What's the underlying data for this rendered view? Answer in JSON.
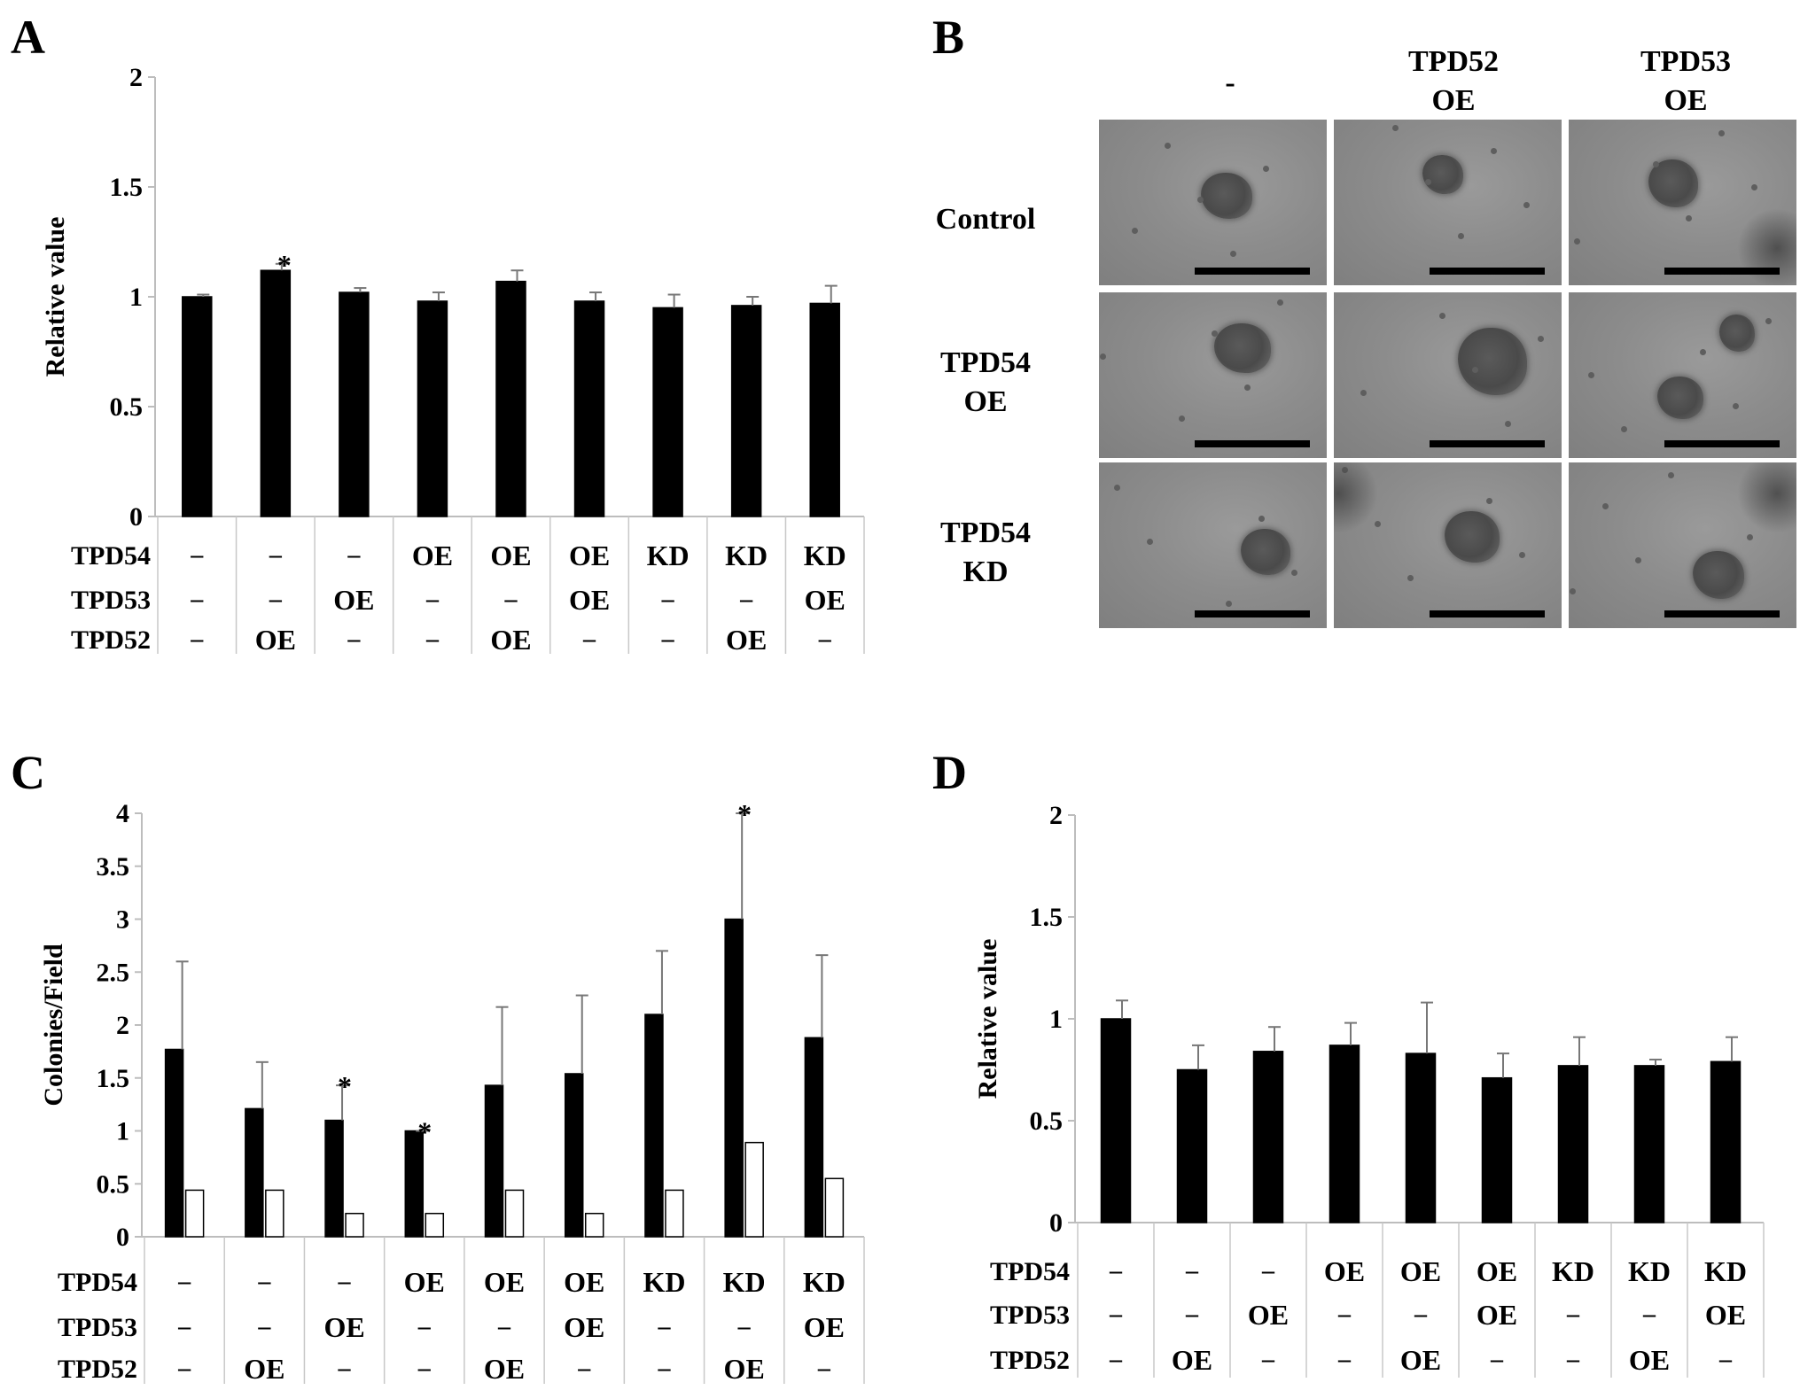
{
  "panel_labels": {
    "a": "A",
    "b": "B",
    "c": "C",
    "d": "D"
  },
  "symbols": {
    "dash": "–",
    "asterisk": "*"
  },
  "panel_b": {
    "column_headers": [
      [
        "-"
      ],
      [
        "TPD52",
        "OE"
      ],
      [
        "TPD53",
        "OE"
      ]
    ],
    "row_headers": [
      [
        "Control"
      ],
      [
        "TPD54",
        "OE"
      ],
      [
        "TPD54",
        "KD"
      ]
    ]
  },
  "chart_data": [
    {
      "panel": "A",
      "type": "bar",
      "ylabel": "Relative value",
      "ylim": [
        0,
        2
      ],
      "yticks": [
        0,
        0.5,
        1,
        1.5,
        2
      ],
      "ytick_labels": [
        "0",
        "0.5",
        "1",
        "1.5",
        "2"
      ],
      "bar_color": "#000000",
      "series": [
        {
          "values": [
            1.0,
            1.12,
            1.02,
            0.98,
            1.07,
            0.98,
            0.95,
            0.96,
            0.97
          ],
          "errors": [
            0.01,
            0.03,
            0.02,
            0.04,
            0.05,
            0.04,
            0.06,
            0.04,
            0.08
          ]
        }
      ],
      "significant": [
        false,
        true,
        false,
        false,
        false,
        false,
        false,
        false,
        false
      ],
      "conditions": {
        "row_labels": [
          "TPD54",
          "TPD53",
          "TPD52"
        ],
        "rows": [
          [
            "",
            "",
            "",
            "OE",
            "OE",
            "OE",
            "KD",
            "KD",
            "KD"
          ],
          [
            "",
            "",
            "OE",
            "",
            "",
            "OE",
            "",
            "",
            "OE"
          ],
          [
            "",
            "OE",
            "",
            "",
            "OE",
            "",
            "",
            "OE",
            ""
          ]
        ]
      }
    },
    {
      "panel": "C",
      "type": "bar",
      "ylabel": "Colonies/Field",
      "ylim": [
        0,
        4
      ],
      "yticks": [
        0,
        0.5,
        1,
        1.5,
        2,
        2.5,
        3,
        3.5,
        4
      ],
      "ytick_labels": [
        "0",
        "0.5",
        "1",
        "1.5",
        "2",
        "2.5",
        "3",
        "3.5",
        "4"
      ],
      "series": [
        {
          "color": "#000000",
          "values": [
            1.77,
            1.21,
            1.1,
            1.0,
            1.43,
            1.54,
            2.1,
            3.0,
            1.88
          ],
          "errors": [
            0.83,
            0.44,
            0.33,
            0.0,
            0.74,
            0.74,
            0.6,
            1.0,
            0.78
          ]
        },
        {
          "color": "#ffffff",
          "values": [
            0.44,
            0.44,
            0.22,
            0.22,
            0.44,
            0.22,
            0.44,
            0.89,
            0.55
          ]
        }
      ],
      "significant": [
        false,
        false,
        true,
        true,
        false,
        false,
        false,
        true,
        false
      ],
      "conditions": {
        "row_labels": [
          "TPD54",
          "TPD53",
          "TPD52"
        ],
        "rows": [
          [
            "",
            "",
            "",
            "OE",
            "OE",
            "OE",
            "KD",
            "KD",
            "KD"
          ],
          [
            "",
            "",
            "OE",
            "",
            "",
            "OE",
            "",
            "",
            "OE"
          ],
          [
            "",
            "OE",
            "",
            "",
            "OE",
            "",
            "",
            "OE",
            ""
          ]
        ]
      }
    },
    {
      "panel": "D",
      "type": "bar",
      "ylabel": "Relative value",
      "ylim": [
        0,
        2
      ],
      "yticks": [
        0,
        0.5,
        1,
        1.5,
        2
      ],
      "ytick_labels": [
        "0",
        "0.5",
        "1",
        "1.5",
        "2"
      ],
      "bar_color": "#000000",
      "series": [
        {
          "values": [
            1.0,
            0.75,
            0.84,
            0.87,
            0.83,
            0.71,
            0.77,
            0.77,
            0.79
          ],
          "errors": [
            0.09,
            0.12,
            0.12,
            0.11,
            0.25,
            0.12,
            0.14,
            0.03,
            0.12
          ]
        }
      ],
      "significant": [
        false,
        false,
        false,
        false,
        false,
        false,
        false,
        false,
        false
      ],
      "conditions": {
        "row_labels": [
          "TPD54",
          "TPD53",
          "TPD52"
        ],
        "rows": [
          [
            "",
            "",
            "",
            "OE",
            "OE",
            "OE",
            "KD",
            "KD",
            "KD"
          ],
          [
            "",
            "",
            "OE",
            "",
            "",
            "OE",
            "",
            "",
            "OE"
          ],
          [
            "",
            "OE",
            "",
            "",
            "OE",
            "",
            "",
            "OE",
            ""
          ]
        ]
      }
    }
  ]
}
